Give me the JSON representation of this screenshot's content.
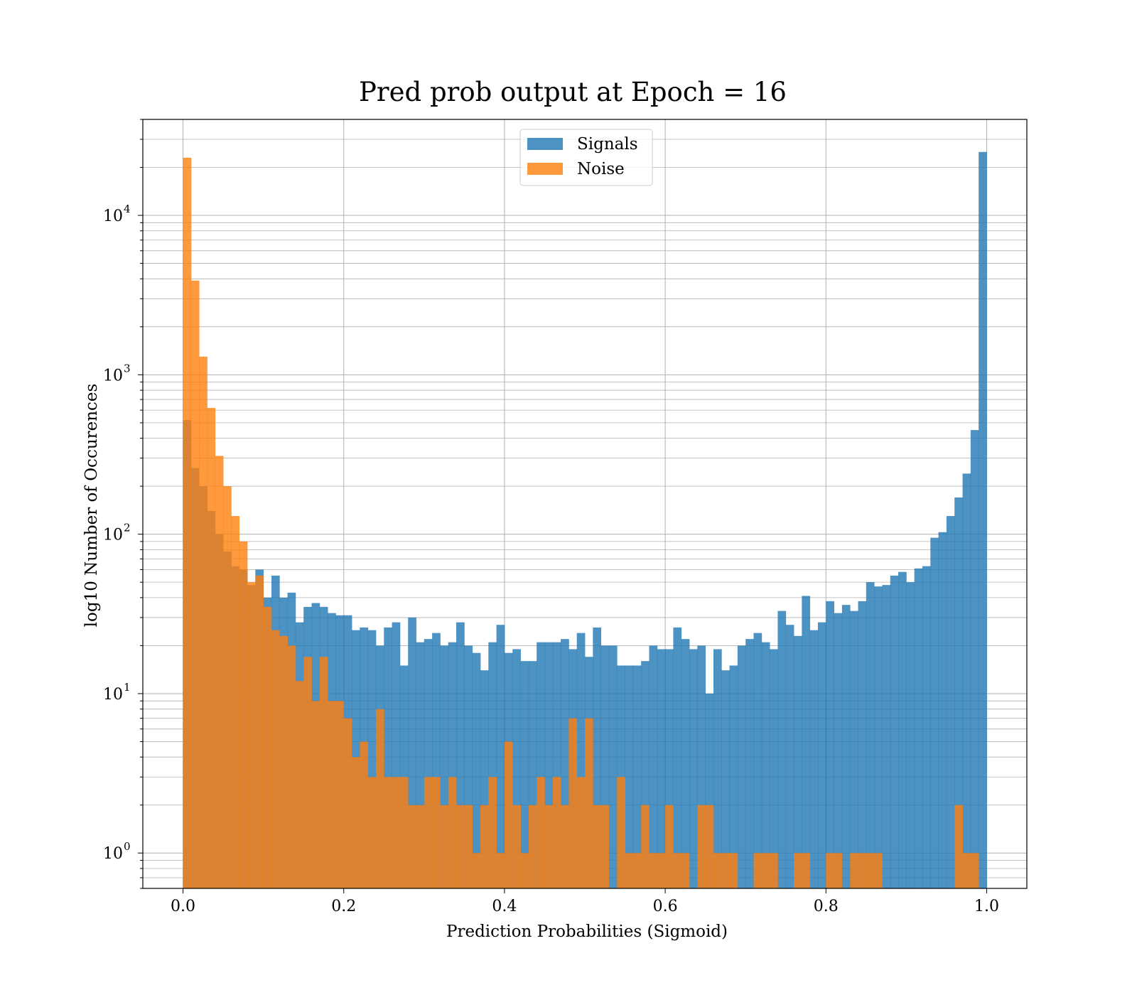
{
  "chart_data": {
    "type": "bar",
    "title": "Pred prob output at Epoch = 16",
    "xlabel": "Prediction Probabilities (Sigmoid)",
    "ylabel": "log10 Number of Occurences",
    "xlim": [
      -0.05,
      1.05
    ],
    "ylim": [
      0.6,
      40000
    ],
    "yscale": "log",
    "grid": true,
    "legend_position": "top-center",
    "bins": 100,
    "bin_range": [
      0,
      1
    ],
    "xticks": [
      0.0,
      0.2,
      0.4,
      0.6,
      0.8,
      1.0
    ],
    "xtick_labels": [
      "0.0",
      "0.2",
      "0.4",
      "0.6",
      "0.8",
      "1.0"
    ],
    "yticks": [
      {
        "value": 1,
        "base": "10",
        "exp": "0"
      },
      {
        "value": 10,
        "base": "10",
        "exp": "1"
      },
      {
        "value": 100,
        "base": "10",
        "exp": "2"
      },
      {
        "value": 1000,
        "base": "10",
        "exp": "3"
      },
      {
        "value": 10000,
        "base": "10",
        "exp": "4"
      }
    ],
    "series": [
      {
        "name": "Signals",
        "color": "#1f77b4",
        "opacity": 0.8,
        "values": [
          520,
          260,
          200,
          140,
          100,
          78,
          63,
          60,
          48,
          60,
          40,
          55,
          40,
          43,
          28,
          35,
          37,
          35,
          32,
          31,
          31,
          25,
          26,
          25,
          20,
          26,
          28,
          15,
          30,
          21,
          22,
          24,
          20,
          21,
          28,
          20,
          18,
          14,
          21,
          27,
          18,
          19,
          16,
          16,
          21,
          21,
          21,
          22,
          19,
          24,
          17,
          26,
          20,
          20,
          15,
          15,
          15,
          16,
          20,
          19,
          19,
          26,
          22,
          19,
          20,
          10,
          19,
          14,
          15,
          20,
          22,
          24,
          21,
          19,
          33,
          27,
          23,
          41,
          25,
          28,
          38,
          32,
          36,
          33,
          38,
          50,
          47,
          48,
          55,
          58,
          50,
          61,
          63,
          95,
          103,
          130,
          170,
          240,
          450,
          25000
        ]
      },
      {
        "name": "Noise",
        "color": "#ff7f0e",
        "opacity": 0.8,
        "values": [
          23000,
          3900,
          1300,
          620,
          310,
          200,
          130,
          90,
          50,
          55,
          35,
          25,
          23,
          20,
          12,
          17,
          9,
          17,
          9,
          9,
          7,
          4,
          5,
          3,
          8,
          3,
          3,
          3,
          2,
          2,
          3,
          3,
          2,
          3,
          2,
          2,
          1,
          2,
          3,
          1,
          5,
          2,
          1,
          2,
          3,
          2,
          3,
          2,
          7,
          3,
          7,
          2,
          2,
          0,
          3,
          1,
          1,
          2,
          1,
          1,
          2,
          1,
          1,
          0,
          2,
          2,
          1,
          1,
          1,
          0,
          0,
          1,
          1,
          1,
          0,
          0,
          1,
          1,
          0,
          0,
          1,
          1,
          0,
          1,
          1,
          1,
          1,
          0,
          0,
          0,
          0,
          0,
          0,
          0,
          0,
          0,
          2,
          1,
          1,
          0
        ]
      }
    ]
  }
}
